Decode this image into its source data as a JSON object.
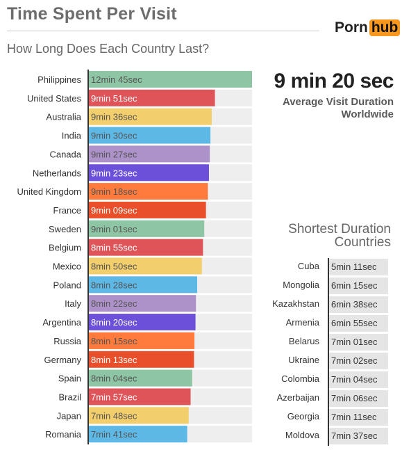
{
  "header": {
    "title": "Time Spent Per Visit",
    "subtitle": "How Long Does Each Country Last?",
    "logo_left": "Porn",
    "logo_right": "hub"
  },
  "summary": {
    "value": "9 min 20 sec",
    "caption": "Average Visit Duration Worldwide"
  },
  "shortest": {
    "title": "Shortest Duration Countries",
    "rows": [
      {
        "country": "Cuba",
        "label": "5min 11sec"
      },
      {
        "country": "Mongolia",
        "label": "6min 15sec"
      },
      {
        "country": "Kazakhstan",
        "label": "6min 38sec"
      },
      {
        "country": "Armenia",
        "label": "6min 55sec"
      },
      {
        "country": "Belarus",
        "label": "7min 01sec"
      },
      {
        "country": "Ukraine",
        "label": "7min 02sec"
      },
      {
        "country": "Colombia",
        "label": "7min 04sec"
      },
      {
        "country": "Azerbaijan",
        "label": "7min 06sec"
      },
      {
        "country": "Georgia",
        "label": "7min 11sec"
      },
      {
        "country": "Moldova",
        "label": "7min 37sec"
      }
    ]
  },
  "chart_data": {
    "type": "bar",
    "orientation": "horizontal",
    "title": "Time Spent Per Visit",
    "subtitle": "How Long Does Each Country Last?",
    "unit": "seconds",
    "xlim": [
      0,
      765
    ],
    "categories": [
      "Philippines",
      "United States",
      "Australia",
      "India",
      "Canada",
      "Netherlands",
      "United Kingdom",
      "France",
      "Sweden",
      "Belgium",
      "Mexico",
      "Poland",
      "Italy",
      "Argentina",
      "Russia",
      "Germany",
      "Spain",
      "Brazil",
      "Japan",
      "Romania"
    ],
    "values": [
      765,
      591,
      576,
      570,
      567,
      563,
      558,
      549,
      541,
      535,
      530,
      508,
      502,
      500,
      495,
      493,
      484,
      477,
      468,
      461
    ],
    "labels": [
      "12min 45sec",
      "9min 51sec",
      "9min 36sec",
      "9min 30sec",
      "9min 27sec",
      "9min 23sec",
      "9min 18sec",
      "9min 09sec",
      "9min 01sec",
      "8min 55sec",
      "8min 50sec",
      "8min 28sec",
      "8min 22sec",
      "8min 20sec",
      "8min 15sec",
      "8min 13sec",
      "8min 04sec",
      "7min 57sec",
      "7min 48sec",
      "7min 41sec"
    ],
    "colors": [
      "#8ec5a5",
      "#de5459",
      "#f2ce6c",
      "#5db8e6",
      "#ad92c9",
      "#6c50d9",
      "#ff7a3d",
      "#e84f2a"
    ],
    "label_colors": [
      "#555555",
      "#ffffff",
      "#555555",
      "#555555",
      "#555555",
      "#ffffff",
      "#555555",
      "#ffffff"
    ],
    "track_color": "#eeeeee"
  }
}
